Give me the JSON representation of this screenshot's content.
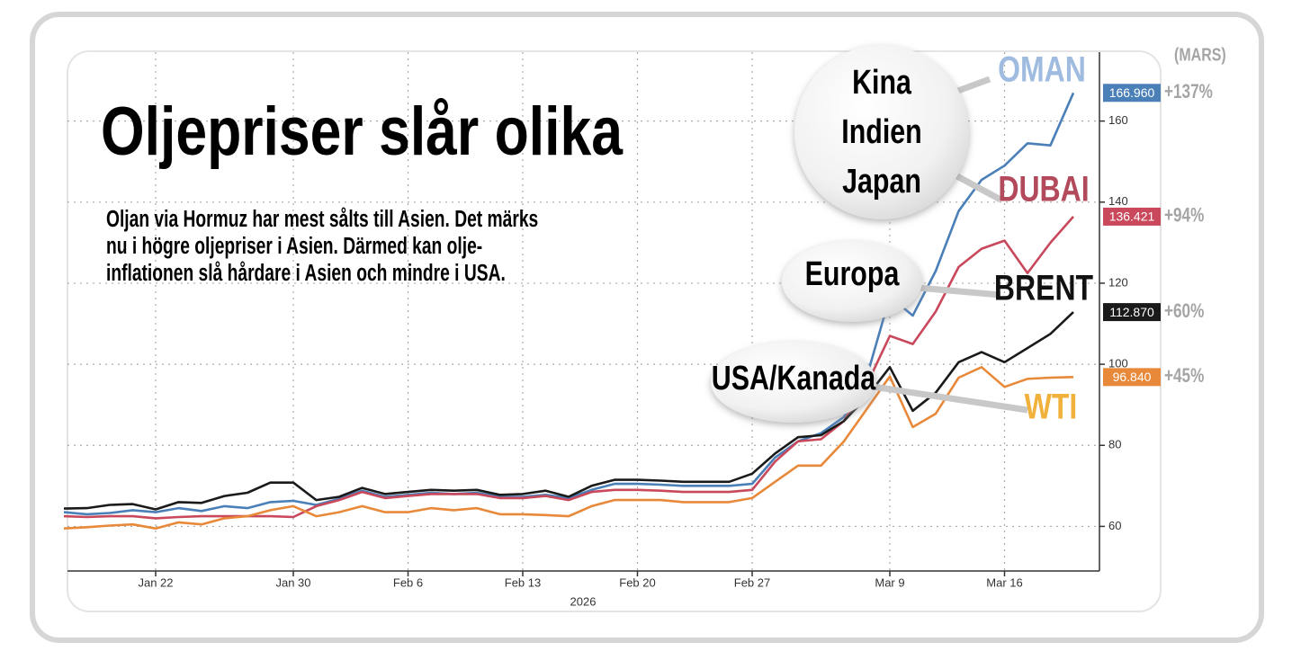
{
  "chart_data": {
    "type": "line",
    "title": "Oljepriser slår olika",
    "subtitle": [
      "Oljan via Hormuz har mest sålts till Asien. Det märks",
      "nu i högre oljepriser i Asien. Därmed kan olje-",
      "inflationen slå hårdare i Asien och mindre i USA."
    ],
    "xlabel": "2026",
    "change_header": "(MARS)",
    "categories": [
      null,
      null,
      null,
      null,
      "Jan 22",
      null,
      null,
      null,
      null,
      null,
      "Jan 30",
      null,
      null,
      null,
      null,
      "Feb 6",
      null,
      null,
      null,
      null,
      "Feb 13",
      null,
      null,
      null,
      null,
      "Feb 20",
      null,
      null,
      null,
      null,
      "Feb 27",
      null,
      null,
      null,
      null,
      null,
      "Mar 9",
      null,
      null,
      null,
      null,
      "Mar 16",
      null,
      null,
      null
    ],
    "ylim": [
      49,
      177
    ],
    "yticks": [
      60,
      80,
      100,
      120,
      140,
      160
    ],
    "grid": true,
    "series": [
      {
        "name": "OMAN",
        "color": "#4a7fb8",
        "label_color": "#9fbbe0",
        "end_label": "166.960",
        "change": "+137%",
        "values": [
          63.5,
          63,
          63.3,
          64,
          63.5,
          64.5,
          63.8,
          65,
          64.5,
          66,
          66.3,
          65.3,
          66.8,
          68.8,
          67.3,
          67.8,
          68.3,
          68,
          68.3,
          67.3,
          67.3,
          67.8,
          67,
          69,
          70.5,
          70.5,
          70.3,
          70,
          70,
          70,
          70.5,
          77,
          81,
          83,
          87,
          97,
          116.7,
          112,
          123,
          137.8,
          145.5,
          149,
          154.5,
          154,
          166.96
        ]
      },
      {
        "name": "DUBAI",
        "color": "#c9485b",
        "label_color": "#b24a5c",
        "end_label": "136.421",
        "change": "+94%",
        "values": [
          62.5,
          62.3,
          62.5,
          62.5,
          62,
          62.3,
          62.5,
          62.5,
          62.5,
          62.5,
          62.3,
          65,
          66.5,
          68.5,
          67,
          67.5,
          68,
          68,
          68,
          67,
          67,
          67.5,
          66.5,
          68.5,
          69,
          69,
          68.8,
          68.5,
          68.5,
          68.5,
          69,
          76,
          81,
          81.5,
          86,
          95,
          107,
          105,
          113,
          124,
          128.5,
          130.5,
          122.5,
          130,
          136.421
        ]
      },
      {
        "name": "BRENT",
        "color": "#1a1a1a",
        "label_color": "#111111",
        "end_label": "112.870",
        "change": "+60%",
        "values": [
          64.4,
          64.5,
          65.3,
          65.5,
          64.2,
          66,
          65.8,
          67.5,
          68.3,
          70.8,
          70.8,
          66.5,
          67.3,
          69.5,
          68,
          68.5,
          69,
          68.8,
          69,
          67.8,
          68,
          68.8,
          67.3,
          70,
          71.5,
          71.5,
          71.3,
          71,
          71,
          71,
          73,
          78,
          82,
          82.5,
          86,
          92,
          99.3,
          88.5,
          93,
          100.5,
          103,
          100.5,
          104,
          107.5,
          112.87
        ]
      },
      {
        "name": "WTI",
        "color": "#e8893a",
        "label_color": "#f0b23c",
        "end_label": "96.840",
        "change": "+45%",
        "values": [
          59.5,
          59.8,
          60.2,
          60.5,
          59.5,
          61,
          60.5,
          62,
          62.5,
          64,
          65,
          62.5,
          63.5,
          65,
          63.5,
          63.5,
          64.5,
          64,
          64.5,
          63,
          63,
          62.8,
          62.5,
          65,
          66.5,
          66.5,
          66.5,
          66,
          66,
          66,
          67,
          71,
          75,
          75,
          81,
          89,
          97,
          84.5,
          87.8,
          96.7,
          99.3,
          94.4,
          96.4,
          96.7,
          96.84
        ]
      }
    ],
    "bubbles": [
      {
        "lines": [
          "Kina",
          "Indien",
          "Japan"
        ]
      },
      {
        "lines": [
          "Europa"
        ]
      },
      {
        "lines": [
          "USA/Kanada"
        ]
      }
    ]
  }
}
